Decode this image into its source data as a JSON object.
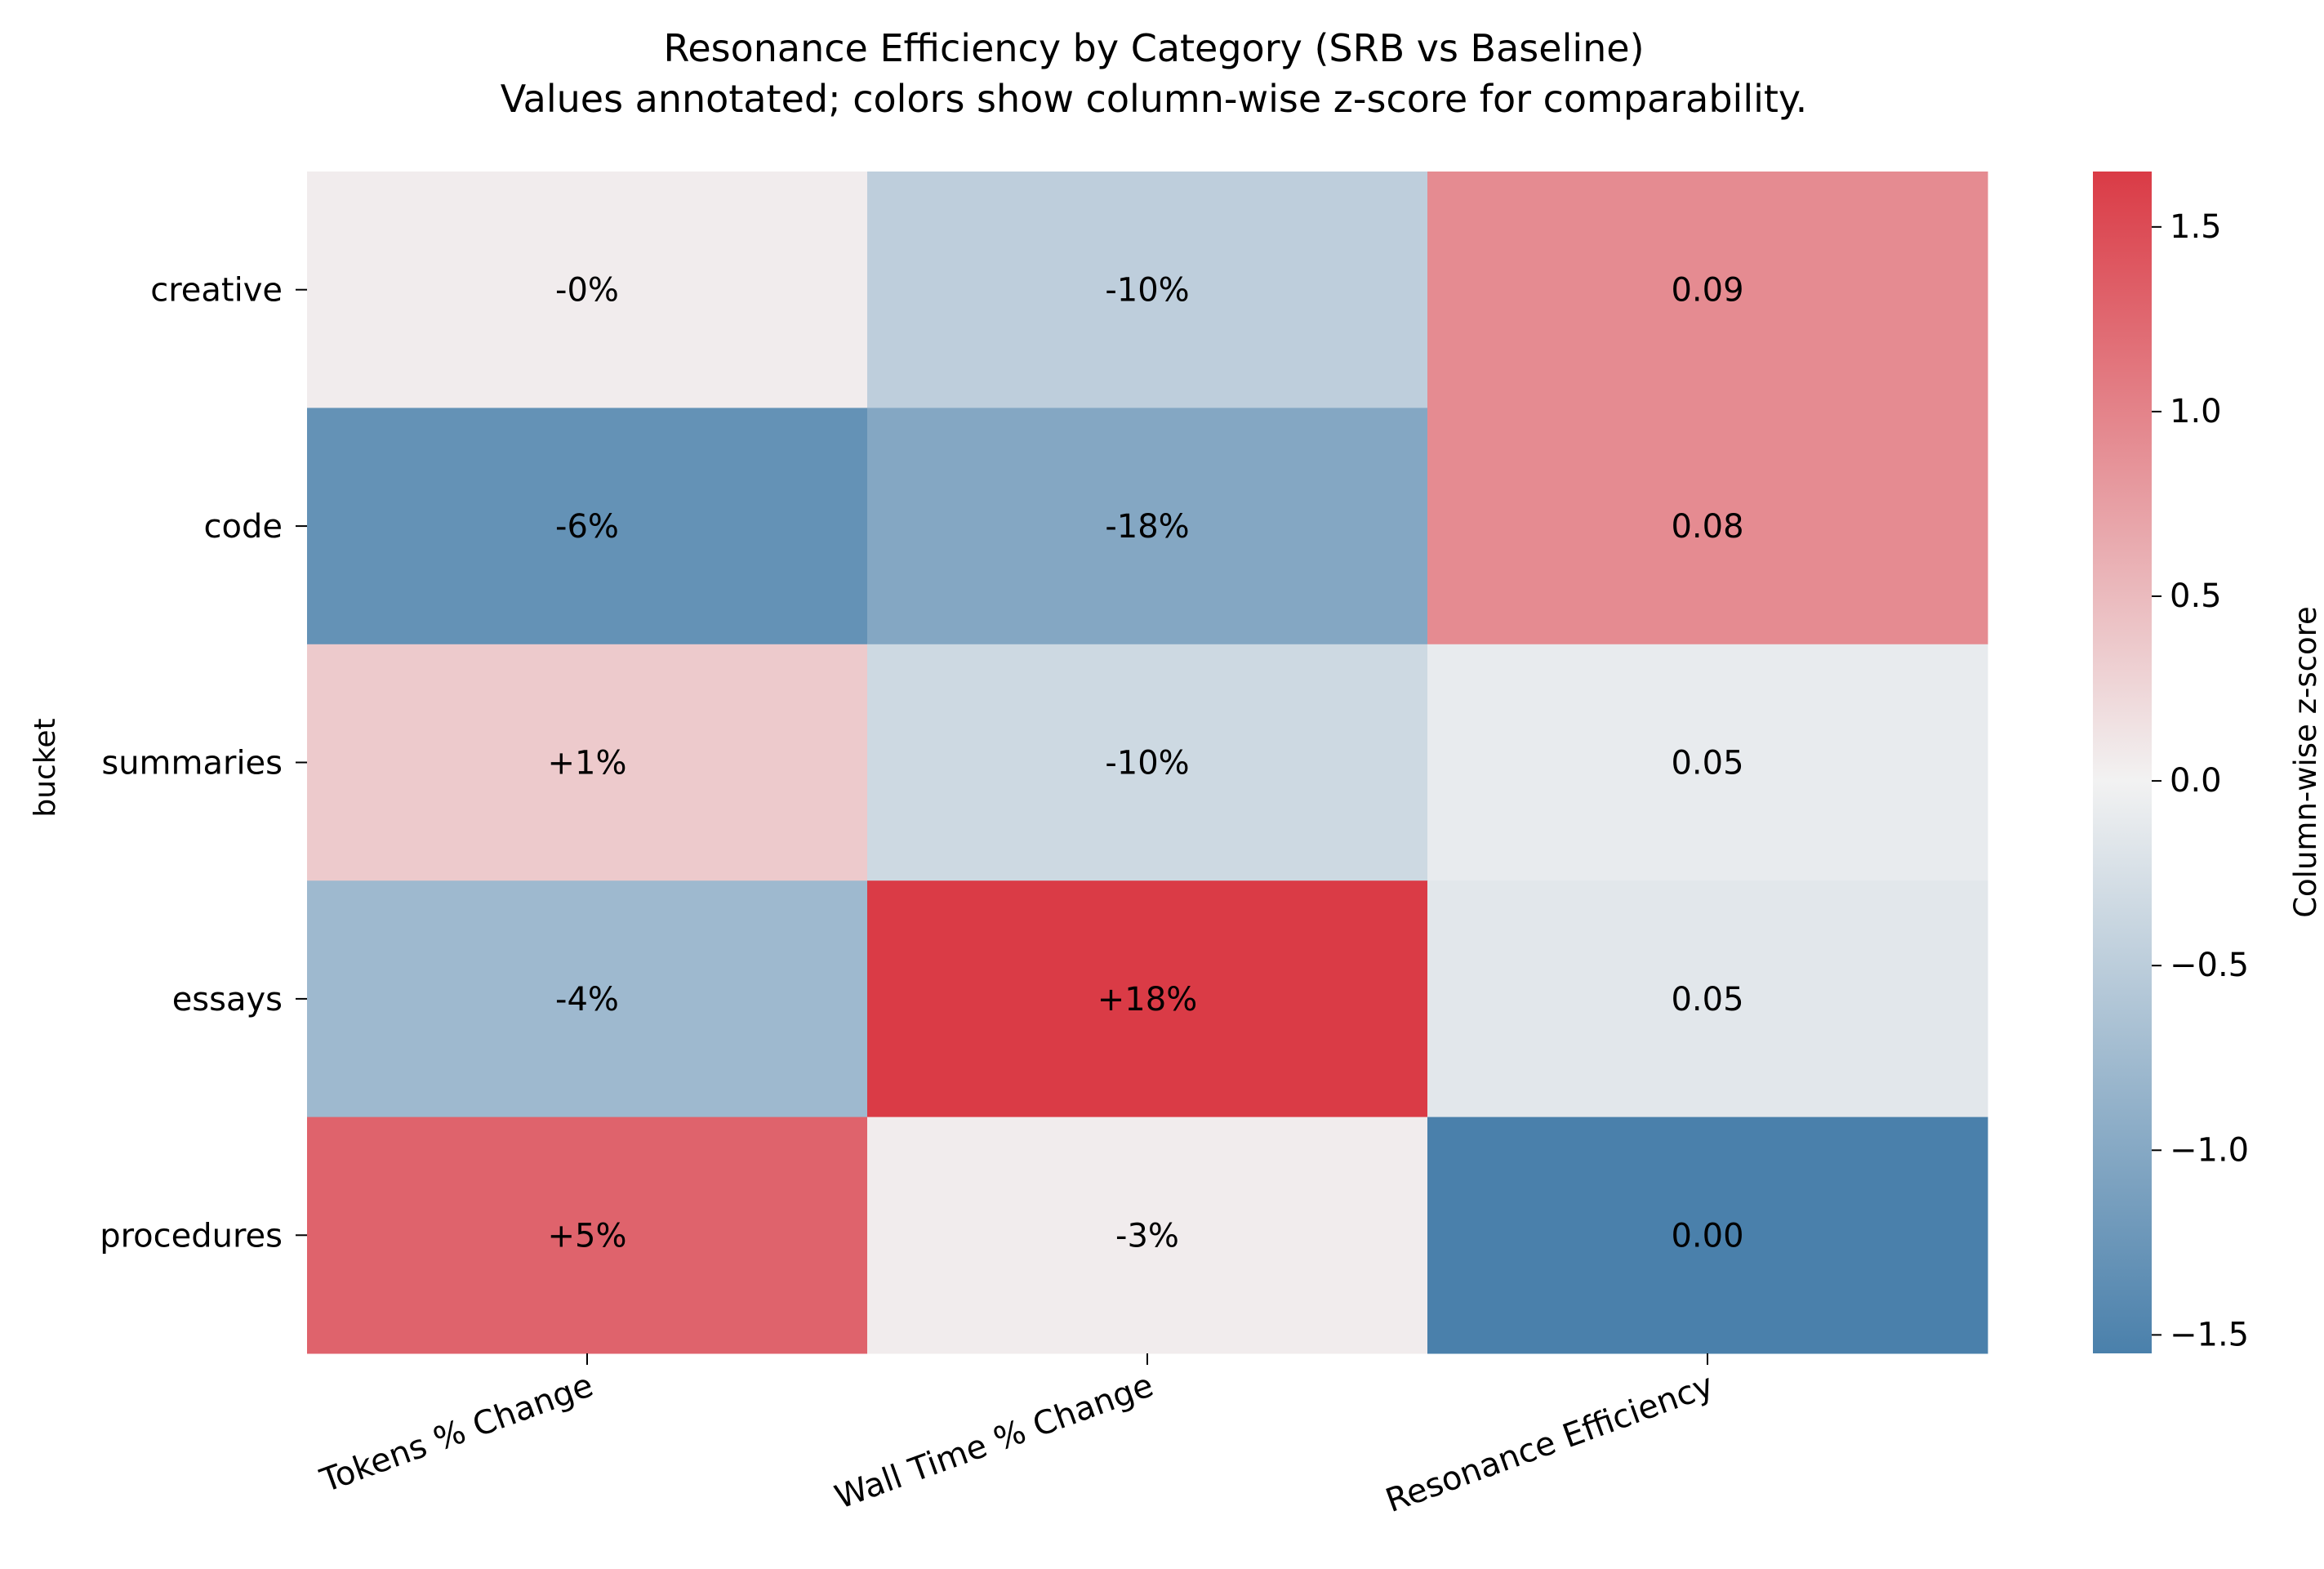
{
  "chart_data": {
    "type": "heatmap",
    "title": "Resonance Efficiency by Category (SRB vs Baseline)",
    "subtitle": "Values annotated; colors show column-wise z-score for comparability.",
    "ylabel": "bucket",
    "xlabel": "",
    "rows": [
      "creative",
      "code",
      "summaries",
      "essays",
      "procedures"
    ],
    "columns": [
      "Tokens % Change",
      "Wall Time % Change",
      "Resonance Efficiency"
    ],
    "annotations": [
      [
        "-0%",
        "-10%",
        "0.09"
      ],
      [
        "-6%",
        "-18%",
        "0.08"
      ],
      [
        "+1%",
        "-10%",
        "0.05"
      ],
      [
        "-4%",
        "+18%",
        "0.05"
      ],
      [
        "+5%",
        "-3%",
        "0.00"
      ]
    ],
    "values": [
      [
        -0.3,
        -10,
        0.09
      ],
      [
        -6,
        -18,
        0.08
      ],
      [
        1,
        -10,
        0.05
      ],
      [
        -4,
        18,
        0.05
      ],
      [
        5,
        -3,
        0.0
      ]
    ],
    "zscores": [
      [
        0.1,
        -0.45,
        0.95
      ],
      [
        -1.3,
        -1.0,
        0.95
      ],
      [
        0.4,
        -0.3,
        -0.05
      ],
      [
        -0.75,
        1.65,
        -0.1
      ],
      [
        1.3,
        0.1,
        -1.55
      ]
    ],
    "colorbar": {
      "label": "Column-wise z-score",
      "min": -1.55,
      "max": 1.65,
      "ticks": [
        -1.5,
        -1.0,
        -0.5,
        0.0,
        0.5,
        1.0,
        1.5
      ],
      "tick_labels": [
        "−1.5",
        "−1.0",
        "−0.5",
        "0.0",
        "0.5",
        "1.0",
        "1.5"
      ],
      "low_color": "#4a80ab",
      "mid_color": "#f2f2f2",
      "high_color": "#da3b46"
    },
    "grid": false,
    "legend": "colorbar-right"
  }
}
